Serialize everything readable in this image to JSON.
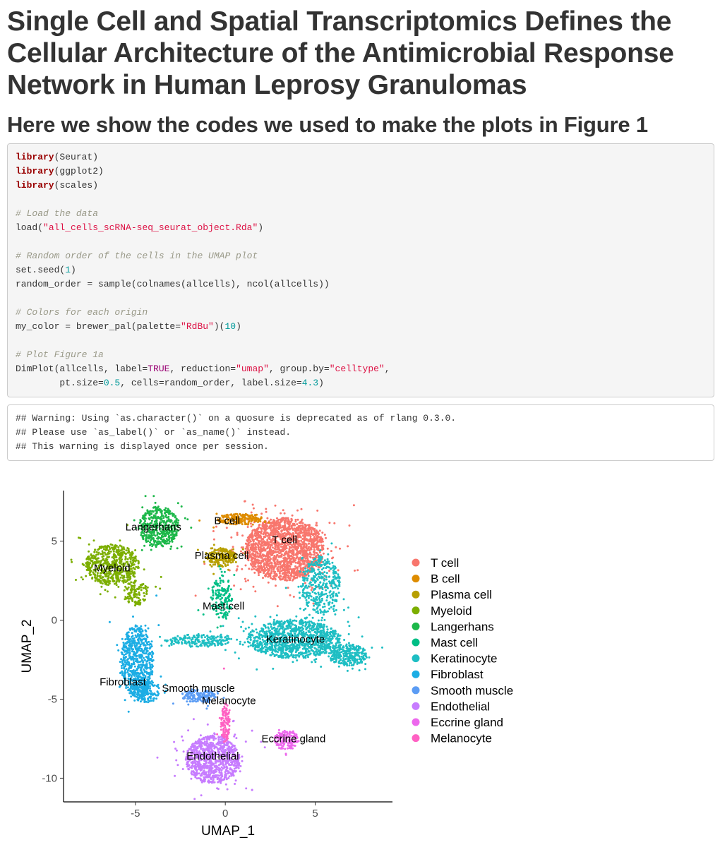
{
  "title": "Single Cell and Spatial Transcriptomics Defines the Cellular Architecture of the Antimicrobial Response Network in Human Leprosy Granulomas",
  "subtitle": "Here we show the codes we used to make the plots in Figure 1",
  "code_block": {
    "lines": [
      [
        {
          "t": "kw",
          "v": "library"
        },
        {
          "t": "",
          "v": "(Seurat)"
        }
      ],
      [
        {
          "t": "kw",
          "v": "library"
        },
        {
          "t": "",
          "v": "(ggplot2)"
        }
      ],
      [
        {
          "t": "kw",
          "v": "library"
        },
        {
          "t": "",
          "v": "(scales)"
        }
      ],
      [],
      [
        {
          "t": "cmt",
          "v": "# Load the data"
        }
      ],
      [
        {
          "t": "",
          "v": "load("
        },
        {
          "t": "str",
          "v": "\"all_cells_scRNA-seq_seurat_object.Rda\""
        },
        {
          "t": "",
          "v": ")"
        }
      ],
      [],
      [
        {
          "t": "cmt",
          "v": "# Random order of the cells in the UMAP plot"
        }
      ],
      [
        {
          "t": "",
          "v": "set.seed("
        },
        {
          "t": "num",
          "v": "1"
        },
        {
          "t": "",
          "v": ")"
        }
      ],
      [
        {
          "t": "",
          "v": "random_order = sample(colnames(allcells), ncol(allcells))"
        }
      ],
      [],
      [
        {
          "t": "cmt",
          "v": "# Colors for each origin"
        }
      ],
      [
        {
          "t": "",
          "v": "my_color = brewer_pal(palette="
        },
        {
          "t": "str",
          "v": "\"RdBu\""
        },
        {
          "t": "",
          "v": ")("
        },
        {
          "t": "num",
          "v": "10"
        },
        {
          "t": "",
          "v": ")"
        }
      ],
      [],
      [
        {
          "t": "cmt",
          "v": "# Plot Figure 1a"
        }
      ],
      [
        {
          "t": "",
          "v": "DimPlot(allcells, label="
        },
        {
          "t": "bool",
          "v": "TRUE"
        },
        {
          "t": "",
          "v": ", reduction="
        },
        {
          "t": "str",
          "v": "\"umap\""
        },
        {
          "t": "",
          "v": ", group.by="
        },
        {
          "t": "str",
          "v": "\"celltype\""
        },
        {
          "t": "",
          "v": ","
        }
      ],
      [
        {
          "t": "",
          "v": "        pt.size="
        },
        {
          "t": "num",
          "v": "0.5"
        },
        {
          "t": "",
          "v": ", cells=random_order, label.size="
        },
        {
          "t": "num",
          "v": "4.3"
        },
        {
          "t": "",
          "v": ")"
        }
      ]
    ]
  },
  "output_block": {
    "lines": [
      "## Warning: Using `as.character()` on a quosure is deprecated as of rlang 0.3.0.",
      "## Please use `as_label()` or `as_name()` instead.",
      "## This warning is displayed once per session."
    ]
  },
  "chart_data": {
    "type": "scatter",
    "title": "",
    "xlabel": "UMAP_1",
    "ylabel": "UMAP_2",
    "xlim": [
      -9,
      9.3
    ],
    "ylim": [
      -11.5,
      8.2
    ],
    "xticks": [
      -5,
      0,
      5
    ],
    "yticks": [
      5,
      0,
      -5,
      -10
    ],
    "grid": false,
    "legend": "right",
    "series": [
      {
        "name": "T cell",
        "color": "#F8766D",
        "label_at": [
          3.3,
          5.1
        ],
        "clusters": [
          [
            3.3,
            4.5,
            2.2,
            2.0,
            1800
          ]
        ]
      },
      {
        "name": "B cell",
        "color": "#DE8C00",
        "label_at": [
          0.1,
          6.3
        ],
        "clusters": [
          [
            0.8,
            6.4,
            1.3,
            0.35,
            200
          ]
        ]
      },
      {
        "name": "Plasma cell",
        "color": "#B79F00",
        "label_at": [
          -0.2,
          4.1
        ],
        "clusters": [
          [
            -0.2,
            4.0,
            0.8,
            0.6,
            220
          ]
        ]
      },
      {
        "name": "Myeloid",
        "color": "#7CAE00",
        "label_at": [
          -6.3,
          3.3
        ],
        "clusters": [
          [
            -6.3,
            3.5,
            1.5,
            1.3,
            550
          ],
          [
            -5.0,
            1.7,
            0.7,
            0.8,
            120
          ]
        ]
      },
      {
        "name": "Langerhans",
        "color": "#1DB84A",
        "label_at": [
          -4.0,
          5.9
        ],
        "clusters": [
          [
            -3.7,
            5.9,
            1.1,
            1.3,
            450
          ]
        ]
      },
      {
        "name": "Mast cell",
        "color": "#00BE85",
        "label_at": [
          -0.1,
          0.9
        ],
        "clusters": [
          [
            -0.2,
            1.4,
            0.6,
            1.3,
            160
          ]
        ]
      },
      {
        "name": "Keratinocyte",
        "color": "#1EBEC3",
        "label_at": [
          3.9,
          -1.2
        ],
        "clusters": [
          [
            3.8,
            -1.2,
            2.6,
            1.2,
            1100
          ],
          [
            5.3,
            2.2,
            1.1,
            1.8,
            380
          ],
          [
            6.8,
            -2.2,
            1.1,
            0.7,
            280
          ],
          [
            -1.5,
            -1.3,
            1.9,
            0.4,
            200
          ]
        ]
      },
      {
        "name": "Fibroblast",
        "color": "#1CADE4",
        "label_at": [
          -5.7,
          -3.9
        ],
        "clusters": [
          [
            -4.9,
            -2.6,
            0.9,
            2.3,
            650
          ],
          [
            -4.4,
            -4.5,
            0.8,
            0.7,
            160
          ]
        ]
      },
      {
        "name": "Smooth muscle",
        "color": "#5B9CF4",
        "label_at": [
          -1.5,
          -4.3
        ],
        "clusters": [
          [
            -1.5,
            -4.8,
            1.0,
            0.4,
            160
          ]
        ]
      },
      {
        "name": "Endothelial",
        "color": "#C77CFF",
        "label_at": [
          -0.7,
          -8.6
        ],
        "clusters": [
          [
            -0.7,
            -8.8,
            1.5,
            1.5,
            850
          ]
        ]
      },
      {
        "name": "Eccrine gland",
        "color": "#ED68ED",
        "label_at": [
          3.8,
          -7.5
        ],
        "clusters": [
          [
            3.4,
            -7.6,
            0.7,
            0.6,
            140
          ]
        ]
      },
      {
        "name": "Melanocyte",
        "color": "#FF61C3",
        "label_at": [
          0.2,
          -5.1
        ],
        "clusters": [
          [
            0.0,
            -6.5,
            0.25,
            1.3,
            110
          ]
        ]
      }
    ]
  }
}
